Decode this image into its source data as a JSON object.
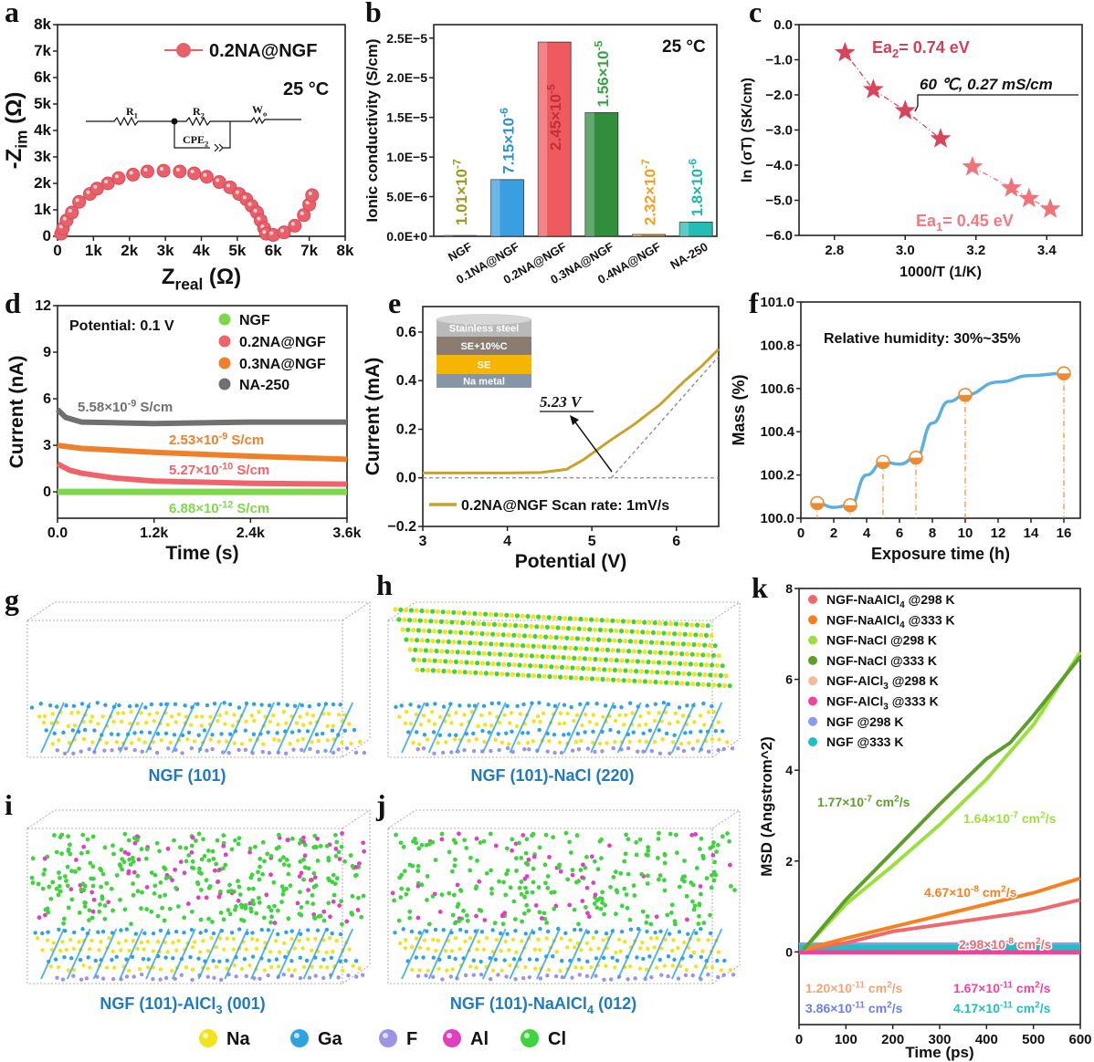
{
  "chart_data": [
    {
      "panel": "a",
      "type": "scatter",
      "xlabel": "Z_{real} (Ω)",
      "ylabel": "-Z_{im} (Ω)",
      "xlim": [
        0,
        8000
      ],
      "ylim": [
        0,
        8000
      ],
      "xticks": [
        0,
        1000,
        2000,
        3000,
        4000,
        5000,
        6000,
        7000,
        8000
      ],
      "xtick_labels": [
        "0",
        "1k",
        "2k",
        "3k",
        "4k",
        "5k",
        "6k",
        "7k",
        "8k"
      ],
      "yticks": [
        0,
        1000,
        2000,
        3000,
        4000,
        5000,
        6000,
        7000,
        8000
      ],
      "ytick_labels": [
        "0",
        "1k",
        "2k",
        "3k",
        "4k",
        "5k",
        "6k",
        "7k",
        "8k"
      ],
      "legend": "0.2NA@NGF",
      "annotation": "25 °C",
      "circuit_labels": [
        "R_{1}",
        "R_{2}",
        "W_{o}",
        "CPE_{2}"
      ],
      "color": "#e8606a",
      "series": [
        {
          "name": "0.2NA@NGF",
          "points": [
            [
              100,
              100
            ],
            [
              150,
              300
            ],
            [
              250,
              600
            ],
            [
              400,
              900
            ],
            [
              600,
              1300
            ],
            [
              900,
              1600
            ],
            [
              1100,
              1800
            ],
            [
              1400,
              2000
            ],
            [
              1700,
              2200
            ],
            [
              2100,
              2330
            ],
            [
              2500,
              2450
            ],
            [
              2950,
              2480
            ],
            [
              3400,
              2450
            ],
            [
              3800,
              2380
            ],
            [
              4150,
              2250
            ],
            [
              4500,
              2050
            ],
            [
              4800,
              1850
            ],
            [
              5050,
              1600
            ],
            [
              5250,
              1400
            ],
            [
              5400,
              1150
            ],
            [
              5550,
              900
            ],
            [
              5650,
              600
            ],
            [
              5750,
              300
            ],
            [
              5800,
              100
            ],
            [
              6000,
              50
            ],
            [
              6300,
              150
            ],
            [
              6600,
              400
            ],
            [
              6850,
              800
            ],
            [
              7000,
              1200
            ],
            [
              7080,
              1550
            ]
          ]
        }
      ]
    },
    {
      "panel": "b",
      "type": "bar",
      "ylabel": "Ionic conductivity (S/cm)",
      "ylim": [
        0,
        2.67e-05
      ],
      "yticks": [
        0,
        5e-06,
        1e-05,
        1.5e-05,
        2e-05,
        2.5e-05
      ],
      "ytick_labels": [
        "0.0E+0",
        "5.0E−6",
        "1.0E−5",
        "1.5E−5",
        "2.0E−5",
        "2.5E−5"
      ],
      "annotation": "25 °C",
      "categories": [
        "NGF",
        "0.1NA@NGF",
        "0.2NA@NGF",
        "0.3NA@NGF",
        "0.4NA@NGF",
        "NA-250"
      ],
      "values": [
        1.01e-07,
        7.15e-06,
        2.45e-05,
        1.56e-05,
        2.32e-07,
        1.8e-06
      ],
      "value_labels": [
        "1.01×10^{-7}",
        "7.15×10^{-6}",
        "2.45×10^{-5}",
        "1.56×10^{-5}",
        "2.32×10^{-7}",
        "1.8×10^{-6}"
      ],
      "colors": [
        "#c8c82a",
        "#3a9fe0",
        "#ee5a5e",
        "#2f8f3c",
        "#f5a623",
        "#22bdb3"
      ],
      "label_colors": [
        "#9a9a1c",
        "#2f8fd6",
        "#e0404a",
        "#3aa34a",
        "#f0a020",
        "#1bb8b0"
      ]
    },
    {
      "panel": "c",
      "type": "scatter",
      "xlabel": "1000/T (1/K)",
      "ylabel": "ln (σT) (SK/cm)",
      "xlim": [
        2.7,
        3.5
      ],
      "ylim": [
        -6,
        0
      ],
      "xticks": [
        2.8,
        3.0,
        3.2,
        3.4
      ],
      "xtick_labels": [
        "2.8",
        "3.0",
        "3.2",
        "3.4"
      ],
      "yticks": [
        0,
        -1,
        -2,
        -3,
        -4,
        -5,
        -6
      ],
      "ytick_labels": [
        "0.0",
        "−1.0",
        "−2.0",
        "−3.0",
        "−4.0",
        "−5.0",
        "−6.0"
      ],
      "series": [
        {
          "name": "high-T",
          "color": "#d8455a",
          "points": [
            [
              2.83,
              -0.8
            ],
            [
              2.91,
              -1.85
            ],
            [
              3.0,
              -2.45
            ],
            [
              3.1,
              -3.25
            ]
          ]
        },
        {
          "name": "low-T",
          "color": "#f0737a",
          "points": [
            [
              3.19,
              -4.05
            ],
            [
              3.3,
              -4.65
            ],
            [
              3.35,
              -4.95
            ],
            [
              3.41,
              -5.25
            ]
          ]
        }
      ],
      "annotations": {
        "ea2": "Ea_{2}= 0.74 eV",
        "ea1": "Ea_{1}= 0.45 eV",
        "point": "60  ℃, 0.27 mS/cm"
      }
    },
    {
      "panel": "d",
      "type": "line",
      "xlabel": "Time (s)",
      "ylabel": "Current (nA)",
      "xlim": [
        0,
        3600
      ],
      "ylim": [
        -1.7,
        12
      ],
      "xticks": [
        0,
        1200,
        2400,
        3600
      ],
      "xtick_labels": [
        "0.0",
        "1.2k",
        "2.4k",
        "3.6k"
      ],
      "yticks": [
        0,
        3,
        6,
        9,
        12
      ],
      "ytick_labels": [
        "0",
        "3",
        "6",
        "9",
        "12"
      ],
      "note": "Potential: 0.1 V",
      "series": [
        {
          "name": "NGF",
          "color": "#7ed84b",
          "label": "6.88×10^{-12} S/cm",
          "points": [
            [
              0,
              0
            ],
            [
              3600,
              0
            ]
          ]
        },
        {
          "name": "0.2NA@NGF",
          "color": "#f0636a",
          "label": "5.27×10^{-10} S/cm",
          "points": [
            [
              0,
              1.8
            ],
            [
              150,
              1.4
            ],
            [
              300,
              1.2
            ],
            [
              700,
              0.9
            ],
            [
              1200,
              0.7
            ],
            [
              2400,
              0.55
            ],
            [
              3600,
              0.5
            ]
          ]
        },
        {
          "name": "0.3NA@NGF",
          "color": "#f07f2a",
          "label": "2.53×10^{-9} S/cm",
          "points": [
            [
              0,
              3.0
            ],
            [
              300,
              2.8
            ],
            [
              1200,
              2.55
            ],
            [
              2400,
              2.3
            ],
            [
              3600,
              2.1
            ]
          ]
        },
        {
          "name": "NA-250",
          "color": "#707070",
          "label": "5.58×10^{-9} S/cm",
          "points": [
            [
              0,
              5.3
            ],
            [
              100,
              4.8
            ],
            [
              300,
              4.5
            ],
            [
              1200,
              4.4
            ],
            [
              2400,
              4.5
            ],
            [
              3600,
              4.5
            ]
          ]
        }
      ]
    },
    {
      "panel": "e",
      "type": "line",
      "xlabel": "Potential (V)",
      "ylabel": "Current (mA)",
      "xlim": [
        3,
        6.5
      ],
      "ylim": [
        -0.2,
        0.705
      ],
      "xticks": [
        3,
        4,
        5,
        6
      ],
      "xtick_labels": [
        "3",
        "4",
        "5",
        "6"
      ],
      "yticks": [
        -0.2,
        0,
        0.2,
        0.4,
        0.6
      ],
      "ytick_labels": [
        "−0.2",
        "0.0",
        "0.2",
        "0.4",
        "0.6"
      ],
      "legend": "0.2NA@NGF Scan rate: 1mV/s",
      "color": "#c9a227",
      "annotation": "5.23 V",
      "onset_v": 5.23,
      "inset_layers": [
        {
          "label": "Stainless steel",
          "color": "#b9b9b9"
        },
        {
          "label": "SE+10%C",
          "color": "#8a7c70"
        },
        {
          "label": "SE",
          "color": "#f6b500"
        },
        {
          "label": "Na metal",
          "color": "#8795a8"
        }
      ],
      "series": [
        {
          "name": "0.2NA@NGF",
          "points": [
            [
              3,
              0.02
            ],
            [
              3.5,
              0.02
            ],
            [
              4,
              0.02
            ],
            [
              4.4,
              0.022
            ],
            [
              4.7,
              0.035
            ],
            [
              4.9,
              0.075
            ],
            [
              5.2,
              0.15
            ],
            [
              5.5,
              0.22
            ],
            [
              5.8,
              0.3
            ],
            [
              6.1,
              0.4
            ],
            [
              6.3,
              0.46
            ],
            [
              6.5,
              0.53
            ]
          ]
        }
      ]
    },
    {
      "panel": "f",
      "type": "line",
      "xlabel": "Exposure time (h)",
      "ylabel": "Mass (%)",
      "xlim": [
        0,
        17
      ],
      "ylim": [
        100,
        101
      ],
      "xticks": [
        0,
        2,
        4,
        6,
        8,
        10,
        12,
        14,
        16
      ],
      "xtick_labels": [
        "0",
        "2",
        "4",
        "6",
        "8",
        "10",
        "12",
        "14",
        "16"
      ],
      "yticks": [
        100,
        100.2,
        100.4,
        100.6,
        100.8,
        101
      ],
      "ytick_labels": [
        "100.0",
        "100.2",
        "100.4",
        "100.6",
        "100.8",
        "101.0"
      ],
      "note": "Relative humidity: 30%~35%",
      "line_color": "#5bb0e0",
      "marker_color": "#f08a30",
      "markers": [
        [
          1,
          100.07
        ],
        [
          3,
          100.06
        ],
        [
          5,
          100.26
        ],
        [
          7,
          100.28
        ],
        [
          10,
          100.57
        ],
        [
          16,
          100.67
        ]
      ],
      "curve": [
        [
          1,
          100.07
        ],
        [
          2,
          100.05
        ],
        [
          3,
          100.06
        ],
        [
          4,
          100.2
        ],
        [
          5,
          100.26
        ],
        [
          6,
          100.25
        ],
        [
          7,
          100.28
        ],
        [
          8,
          100.44
        ],
        [
          9,
          100.54
        ],
        [
          10,
          100.57
        ],
        [
          12,
          100.63
        ],
        [
          14,
          100.66
        ],
        [
          16,
          100.67
        ]
      ]
    },
    {
      "panel": "k",
      "type": "line",
      "xlabel": "Time (ps)",
      "ylabel": "MSD (Angstrom^2)",
      "xlim": [
        0,
        600
      ],
      "ylim": [
        -1.6,
        8
      ],
      "xticks": [
        0,
        100,
        200,
        300,
        400,
        500,
        600
      ],
      "xtick_labels": [
        "0",
        "100",
        "200",
        "300",
        "400",
        "500",
        "600"
      ],
      "yticks": [
        0,
        2,
        4,
        6,
        8
      ],
      "ytick_labels": [
        "0",
        "2",
        "4",
        "6",
        "8"
      ],
      "series": [
        {
          "name": "NGF-NaAlCl_{4} @298 K",
          "color": "#f0686e",
          "label": "2.98×10^{-8} cm^{2}/s",
          "points": [
            [
              10,
              0.05
            ],
            [
              100,
              0.2
            ],
            [
              200,
              0.45
            ],
            [
              300,
              0.6
            ],
            [
              400,
              0.75
            ],
            [
              500,
              0.9
            ],
            [
              600,
              1.15
            ]
          ]
        },
        {
          "name": "NGF-NaAlCl_{4} @333 K",
          "color": "#f5821f",
          "label": "4.67×10^{-8} cm^{2}/s",
          "points": [
            [
              10,
              0.05
            ],
            [
              100,
              0.3
            ],
            [
              200,
              0.55
            ],
            [
              300,
              0.8
            ],
            [
              400,
              1.05
            ],
            [
              500,
              1.3
            ],
            [
              600,
              1.62
            ]
          ]
        },
        {
          "name": "NGF-NaCl @298 K",
          "color": "#9be03c",
          "label": "1.64×10^{-7} cm^{2}/s",
          "points": [
            [
              10,
              0.05
            ],
            [
              100,
              1.05
            ],
            [
              200,
              1.9
            ],
            [
              300,
              2.8
            ],
            [
              400,
              3.8
            ],
            [
              500,
              5.0
            ],
            [
              600,
              6.6
            ]
          ]
        },
        {
          "name": "NGF-NaCl @333 K",
          "color": "#5e9e2a",
          "label": "1.77×10^{-7} cm^{2}/s",
          "points": [
            [
              10,
              0.05
            ],
            [
              100,
              1.15
            ],
            [
              200,
              2.2
            ],
            [
              300,
              3.25
            ],
            [
              400,
              4.25
            ],
            [
              450,
              4.6
            ],
            [
              500,
              5.2
            ],
            [
              600,
              6.5
            ]
          ]
        },
        {
          "name": "NGF-AlCl_{3} @298 K",
          "color": "#f8b998",
          "label": "1.20×10^{-11} cm^{2}/s",
          "points": [
            [
              0,
              0.05
            ],
            [
              600,
              0.05
            ]
          ]
        },
        {
          "name": "NGF-AlCl_{3} @333 K",
          "color": "#f0449c",
          "label": "1.67×10^{-11} cm^{2}/s",
          "points": [
            [
              0,
              0
            ],
            [
              600,
              0
            ]
          ]
        },
        {
          "name": "NGF @298 K",
          "color": "#8c9cf0",
          "label": "3.86×10^{-11} cm^{2}/s",
          "points": [
            [
              0,
              0.15
            ],
            [
              600,
              0.15
            ]
          ]
        },
        {
          "name": "NGF @333 K",
          "color": "#1fc0c0",
          "label": "4.17×10^{-11} cm^{2}/s",
          "points": [
            [
              0,
              0.1
            ],
            [
              600,
              0.1
            ]
          ]
        }
      ]
    }
  ],
  "structures": {
    "captions": [
      "NGF (101)",
      "NGF (101)-NaCl (220)",
      "NGF (101)-AlCl_{3} (001)",
      "NGF (101)-NaAlCl_{4} (012)"
    ],
    "caption_color": "#1f7ac0",
    "atom_legend": [
      {
        "label": "Na",
        "color": "#f2e31c"
      },
      {
        "label": "Ga",
        "color": "#2ea3e0"
      },
      {
        "label": "F",
        "color": "#9a93e6"
      },
      {
        "label": "Al",
        "color": "#e040c0"
      },
      {
        "label": "Cl",
        "color": "#3fd43f"
      }
    ]
  },
  "panel_letters": [
    "a",
    "b",
    "c",
    "d",
    "e",
    "f",
    "g",
    "h",
    "i",
    "j",
    "k"
  ]
}
